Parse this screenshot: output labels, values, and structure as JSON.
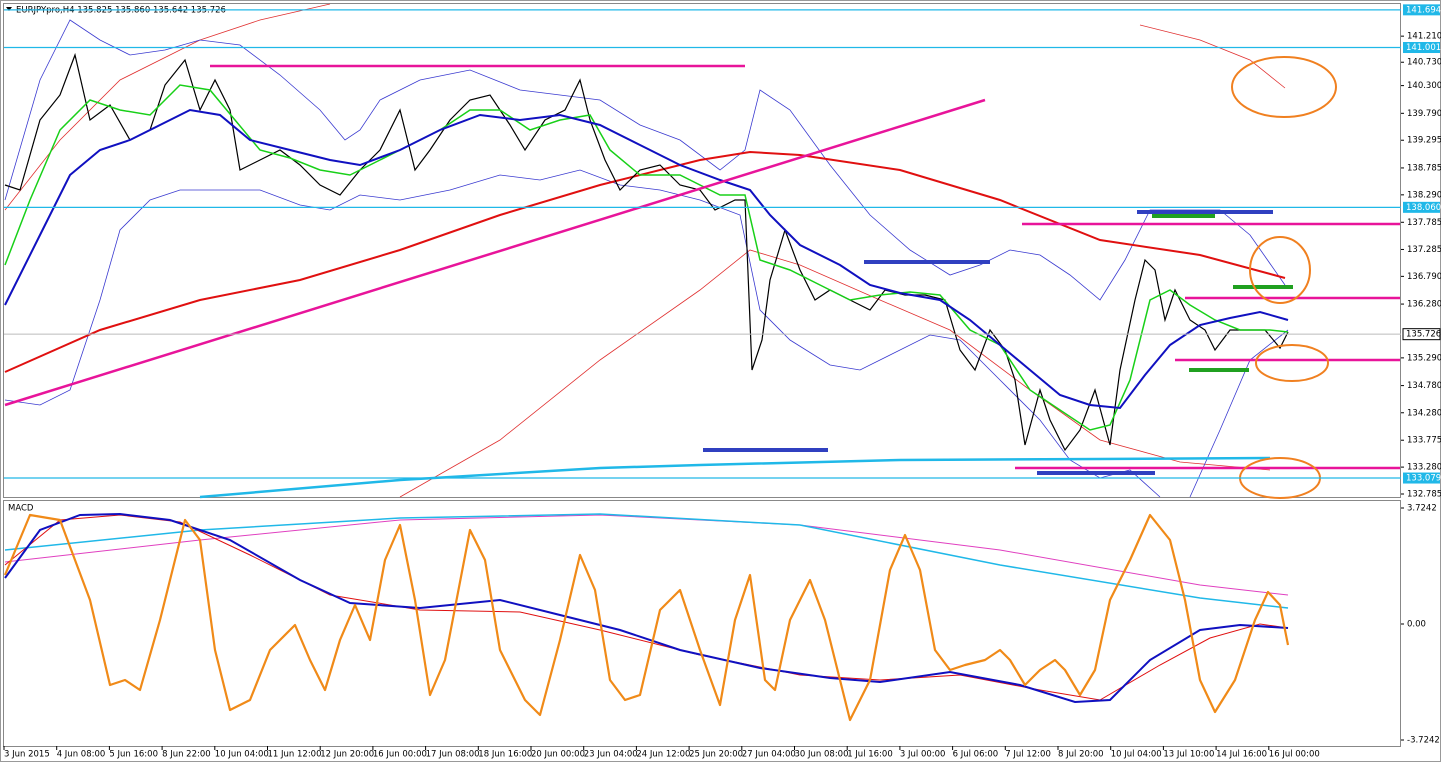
{
  "header": {
    "symbol_info": "EURJPYpro,H4  135.825 135.860 135.642 135.726"
  },
  "price_axis": {
    "range": [
      132.73,
      141.82
    ],
    "ticks": [
      {
        "value": 141.21,
        "label": "141.210"
      },
      {
        "value": 140.73,
        "label": "140.730"
      },
      {
        "value": 140.3,
        "label": "140.300"
      },
      {
        "value": 139.79,
        "label": "139.790"
      },
      139.295,
      138.785,
      {
        "value": 138.29,
        "label": "138.290"
      },
      137.785,
      137.285,
      {
        "value": 136.79,
        "label": "136.790"
      },
      {
        "value": 136.28,
        "label": "136.280"
      },
      {
        "value": 135.29,
        "label": "135.290"
      },
      {
        "value": 134.78,
        "label": "134.780"
      },
      {
        "value": 134.28,
        "label": "134.280"
      },
      133.775,
      {
        "value": 133.28,
        "label": "133.280"
      },
      132.785
    ],
    "levels": [
      141.694,
      141.001,
      {
        "value": 138.06,
        "label": "138.060"
      },
      133.079
    ],
    "current": 135.726
  },
  "time_axis": {
    "labels": [
      "3 Jun 2015",
      "4 Jun 08:00",
      "5 Jun 16:00",
      "8 Jun 22:00",
      "10 Jun 04:00",
      "11 Jun 12:00",
      "12 Jun 20:00",
      "16 Jun 00:00",
      "17 Jun 08:00",
      "18 Jun 16:00",
      "20 Jun 00:00",
      "23 Jun 04:00",
      "24 Jun 12:00",
      "25 Jun 20:00",
      "27 Jun 04:00",
      "30 Jun 08:00",
      "1 Jul 16:00",
      "3 Jul 00:00",
      "6 Jul 06:00",
      "7 Jul 12:00",
      "8 Jul 20:00",
      "10 Jul 04:00",
      "13 Jul 10:00",
      "14 Jul 16:00",
      "16 Jul 00:00"
    ]
  },
  "indicator": {
    "name": "MACD",
    "range": [
      -3.917,
      3.981
    ],
    "ticks": [
      3.7242,
      {
        "value": 0,
        "label": "0.00"
      },
      -3.7242
    ]
  }
}
